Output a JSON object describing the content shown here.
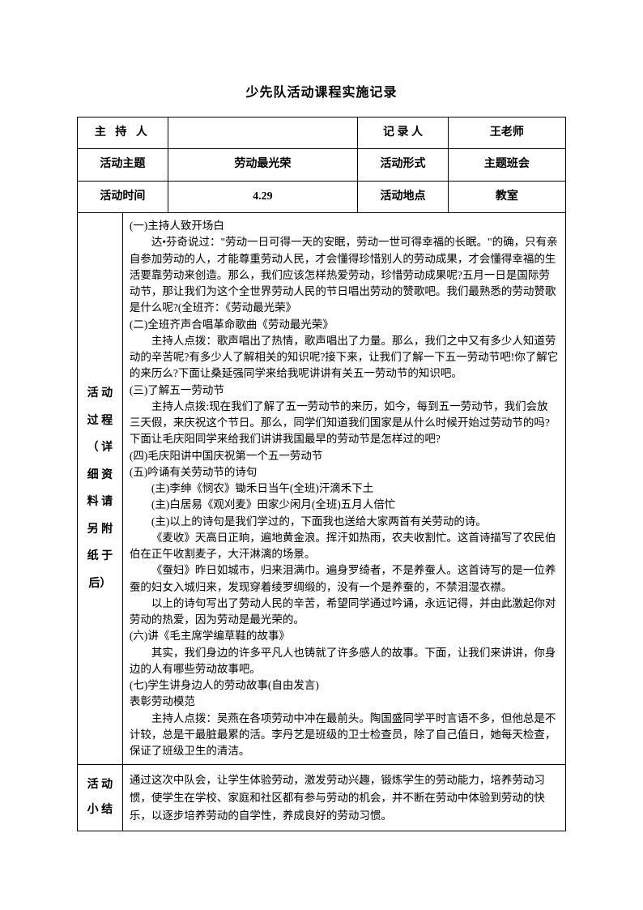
{
  "title": "少先队活动课程实施记录",
  "headers": {
    "host_label": "主 持 人",
    "host_value": "",
    "recorder_label": "记 录 人",
    "recorder_value": "王老师",
    "theme_label": "活动主题",
    "theme_value": "劳动最光荣",
    "form_label": "活动形式",
    "form_value": "主题班会",
    "time_label": "活动时间",
    "time_value": "4.29",
    "place_label": "活动地点",
    "place_value": "教室"
  },
  "process": {
    "label_lines": [
      "活 动",
      "过 程",
      "（ 详",
      "细 资",
      "料 请",
      "另 附",
      "纸 于",
      "后）"
    ],
    "sections": [
      {
        "heading": "(一)主持人致开场白",
        "paragraphs": [
          "达•芬奇说过：\"劳动一日可得一天的安眠，劳动一世可得幸福的长眠。\"的确，只有亲自参加劳动的人，才能尊重劳动人民，才会懂得珍惜别人的劳动成果，才会懂得幸福的生活要靠劳动来创造。那么，我们应该怎样热爱劳动，珍惜劳动成果呢?五月一日是国际劳动节，那让我们为这个全世界劳动人民的节日唱出劳动的赞歌吧。我们最熟悉的劳动赞歌是什么呢?(全班齐：《劳动最光荣》"
        ]
      },
      {
        "heading": "(二)全班齐声合唱革命歌曲《劳动最光荣》",
        "paragraphs": [
          "主持人点拨：歌声唱出了热情，歌声唱出了力量。那么，我们之中又有多少人知道劳动的辛苦呢?有多少人了解相关的知识呢?接下来，让我们了解一下五一劳动节吧!你了解它的来历么?下面让桑延强同学来给我呢讲讲有关五一劳动节的知识吧。"
        ]
      },
      {
        "heading": "(三)了解五一劳动节",
        "paragraphs": [
          "主持人点拨:现在我们了解了五一劳动节的来历，如今，每到五一劳动节，我们会放三天假，来庆祝这个节日。那么，同学们知道我们国家是从什么时候开始过劳动节的吗?下面让毛庆阳同学来给我们讲讲我国最早的劳动节是怎样过的吧?"
        ]
      },
      {
        "heading": "(四)毛庆阳讲中国庆祝第一个五一劳动节",
        "paragraphs": []
      },
      {
        "heading": "(五)吟诵有关劳动节的诗句",
        "paragraphs": [
          "(主)李绅《悯农》锄禾日当午(全班)汗滴禾下土",
          "(主)白居易《观刈麦》田家少闲月(全班)五月人倍忙",
          "(主)以上的诗句是我们学过的，下面我也送给大家两首有关劳动的诗。",
          "《麦收》天高日正晌，遍地黄金浪。挥汗如热雨，农夫收割忙。这首诗描写了农民伯伯在正午收割麦子，大汗淋漓的场景。",
          "《蚕妇》昨日如城市，归来泪满巾。遍身罗绮者，不是养蚕人。这首诗写的是一位养蚕的妇女入城归来，发现穿着绫罗绸缎的，没有一个是养蚕的，不禁泪湿衣襟。",
          "以上的诗句写出了劳动人民的辛苦，希望同学通过吟诵，永远记得，并由此激起你对劳动的热爱，因为劳动是最光荣的。"
        ]
      },
      {
        "heading": "(六)讲《毛主席学编草鞋的故事》",
        "paragraphs": [
          "其实，我们身边的许多平凡人也铸就了许多感人的故事。下面，让我们来讲讲，你身边的人有哪些劳动故事吧。"
        ]
      },
      {
        "heading": "(七)学生讲身边人的劳动故事(自由发言)",
        "paragraphs": []
      },
      {
        "heading": "表彰劳动模范",
        "paragraphs": [
          "主持人点拨：吴燕在各项劳动中冲在最前头。陶国盛同学平时言语不多，但他总是不计较，总是干最脏最累的活。李丹艺是班级的卫士检查员，除了自己值日，她每天检查，保证了班级卫生的清洁。"
        ]
      }
    ]
  },
  "summary": {
    "label_lines": [
      "活 动",
      "小 结"
    ],
    "content": "通过这次中队会，让学生体验劳动，激发劳动兴趣，锻炼学生的劳动能力，培养劳动习惯，使学生在学校、家庭和社区都有参与劳动的机会，并不断在劳动中体验到劳动的快乐，以逐步培养劳动的自学性，养成良好的劳动习惯。"
  },
  "styling": {
    "page_bg": "#ffffff",
    "text_color": "#000000",
    "border_color": "#000000",
    "title_fontsize": 16,
    "body_fontsize": 14,
    "content_fontsize": 13.5
  }
}
